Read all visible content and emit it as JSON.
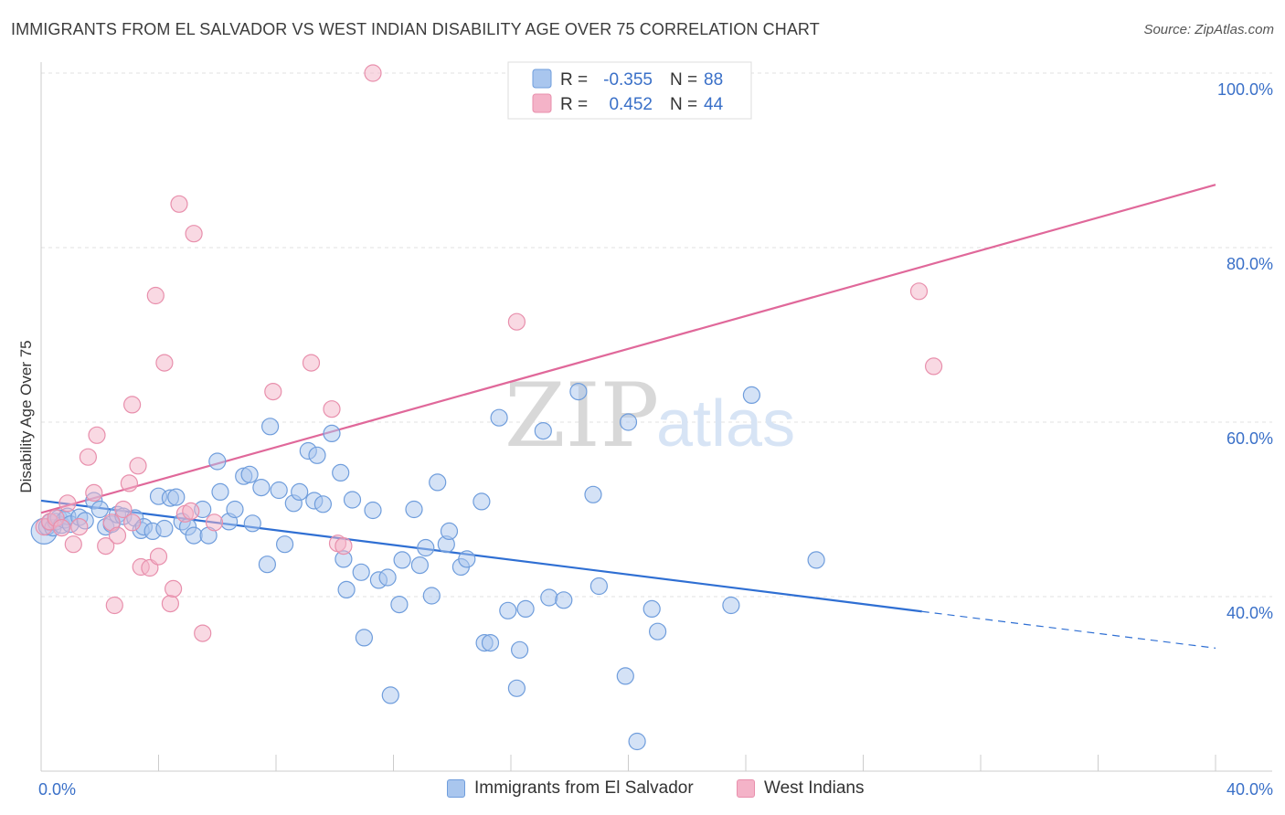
{
  "header": {
    "title": "IMMIGRANTS FROM EL SALVADOR VS WEST INDIAN DISABILITY AGE OVER 75 CORRELATION CHART",
    "source": "Source: ZipAtlas.com"
  },
  "watermark": {
    "part1": "ZIP",
    "part2": "atlas"
  },
  "stats_legend": {
    "rows": [
      {
        "r_label": "R =",
        "r_value": "-0.355",
        "n_label": "N =",
        "n_value": "88",
        "color": "#a9c6ee"
      },
      {
        "r_label": "R =",
        "r_value": "0.452",
        "n_label": "N =",
        "n_value": "44",
        "color": "#f4b3c8"
      }
    ]
  },
  "chart_data": {
    "type": "scatter",
    "xlabel": "",
    "ylabel": "Disability Age Over 75",
    "xlim": [
      0,
      40
    ],
    "ylim": [
      22,
      102
    ],
    "x_tick_labels": [
      {
        "value": 0,
        "label": "0.0%"
      },
      {
        "value": 40,
        "label": "40.0%"
      }
    ],
    "y_tick_labels": [
      {
        "value": 40,
        "label": "40.0%"
      },
      {
        "value": 60,
        "label": "60.0%"
      },
      {
        "value": 80,
        "label": "80.0%"
      },
      {
        "value": 100,
        "label": "100.0%"
      }
    ],
    "grid": true,
    "legend_position": "bottom",
    "series": [
      {
        "name": "Immigrants from El Salvador",
        "color": "#a9c6ee",
        "stroke": "#6f9ddc",
        "trend": {
          "x0": 0,
          "y0": 51.0,
          "x1": 30.0,
          "y1": 38.3,
          "dash_to_x": 40,
          "dash_to_y": 34.1,
          "color": "#2f6fd3"
        },
        "points": [
          [
            0.1,
            47.5
          ],
          [
            0.2,
            48.0
          ],
          [
            0.3,
            48.5
          ],
          [
            0.4,
            47.9
          ],
          [
            0.5,
            48.6
          ],
          [
            0.6,
            49.0
          ],
          [
            0.7,
            48.2
          ],
          [
            0.8,
            48.8
          ],
          [
            0.9,
            49.2
          ],
          [
            1.0,
            48.3
          ],
          [
            1.3,
            49.1
          ],
          [
            1.5,
            48.7
          ],
          [
            1.8,
            51.0
          ],
          [
            2.0,
            50.0
          ],
          [
            2.2,
            48.0
          ],
          [
            2.4,
            48.3
          ],
          [
            2.6,
            49.4
          ],
          [
            2.8,
            49.2
          ],
          [
            3.2,
            49.0
          ],
          [
            3.4,
            47.6
          ],
          [
            3.5,
            48.0
          ],
          [
            3.8,
            47.5
          ],
          [
            4.0,
            51.5
          ],
          [
            4.2,
            47.8
          ],
          [
            4.4,
            51.3
          ],
          [
            4.6,
            51.4
          ],
          [
            4.8,
            48.6
          ],
          [
            5.0,
            48.0
          ],
          [
            5.2,
            47.0
          ],
          [
            5.5,
            50.0
          ],
          [
            5.7,
            47.0
          ],
          [
            6.0,
            55.5
          ],
          [
            6.1,
            52.0
          ],
          [
            6.4,
            48.6
          ],
          [
            6.6,
            50.0
          ],
          [
            6.9,
            53.8
          ],
          [
            7.1,
            54.0
          ],
          [
            7.2,
            48.4
          ],
          [
            7.5,
            52.5
          ],
          [
            7.7,
            43.7
          ],
          [
            7.8,
            59.5
          ],
          [
            8.1,
            52.2
          ],
          [
            8.3,
            46.0
          ],
          [
            8.6,
            50.7
          ],
          [
            8.8,
            52.0
          ],
          [
            9.1,
            56.7
          ],
          [
            9.3,
            51.0
          ],
          [
            9.4,
            56.2
          ],
          [
            9.6,
            50.6
          ],
          [
            9.9,
            58.7
          ],
          [
            10.2,
            54.2
          ],
          [
            10.3,
            44.3
          ],
          [
            10.4,
            40.8
          ],
          [
            10.6,
            51.1
          ],
          [
            10.9,
            42.8
          ],
          [
            11.0,
            35.3
          ],
          [
            11.3,
            49.9
          ],
          [
            11.5,
            41.9
          ],
          [
            11.8,
            42.2
          ],
          [
            11.9,
            28.7
          ],
          [
            12.2,
            39.1
          ],
          [
            12.3,
            44.2
          ],
          [
            12.7,
            50.0
          ],
          [
            12.9,
            43.6
          ],
          [
            13.1,
            45.6
          ],
          [
            13.3,
            40.1
          ],
          [
            13.5,
            53.1
          ],
          [
            13.8,
            46.0
          ],
          [
            13.9,
            47.5
          ],
          [
            14.3,
            43.4
          ],
          [
            14.5,
            44.3
          ],
          [
            15.0,
            50.9
          ],
          [
            15.1,
            34.7
          ],
          [
            15.3,
            34.7
          ],
          [
            15.6,
            60.5
          ],
          [
            15.9,
            38.4
          ],
          [
            16.2,
            29.5
          ],
          [
            16.3,
            33.9
          ],
          [
            16.5,
            38.6
          ],
          [
            17.1,
            59.0
          ],
          [
            17.3,
            39.9
          ],
          [
            17.8,
            39.6
          ],
          [
            18.3,
            63.5
          ],
          [
            18.8,
            51.7
          ],
          [
            19.0,
            41.2
          ],
          [
            19.9,
            30.9
          ],
          [
            20.3,
            23.4
          ],
          [
            20.8,
            38.6
          ],
          [
            21.0,
            36.0
          ],
          [
            23.5,
            39.0
          ],
          [
            24.2,
            63.1
          ],
          [
            26.4,
            44.2
          ],
          [
            20.0,
            60.0
          ]
        ]
      },
      {
        "name": "West Indians",
        "color": "#f4b3c8",
        "stroke": "#e88fac",
        "trend": {
          "x0": 0,
          "y0": 49.6,
          "x1": 40,
          "y1": 87.2,
          "color": "#e0689a"
        },
        "points": [
          [
            0.1,
            48.0
          ],
          [
            0.3,
            48.6
          ],
          [
            0.5,
            49.0
          ],
          [
            0.7,
            47.9
          ],
          [
            0.9,
            50.7
          ],
          [
            1.1,
            46.0
          ],
          [
            1.3,
            48.0
          ],
          [
            1.6,
            56.0
          ],
          [
            1.8,
            51.9
          ],
          [
            1.9,
            58.5
          ],
          [
            2.2,
            45.8
          ],
          [
            2.4,
            48.5
          ],
          [
            2.5,
            39.0
          ],
          [
            2.6,
            47.0
          ],
          [
            2.8,
            50.0
          ],
          [
            3.0,
            53.0
          ],
          [
            3.1,
            48.5
          ],
          [
            3.1,
            62.0
          ],
          [
            3.3,
            55.0
          ],
          [
            3.4,
            43.4
          ],
          [
            3.7,
            43.3
          ],
          [
            3.9,
            74.5
          ],
          [
            4.0,
            44.6
          ],
          [
            4.2,
            66.8
          ],
          [
            4.4,
            39.2
          ],
          [
            4.5,
            40.9
          ],
          [
            4.7,
            85.0
          ],
          [
            4.9,
            49.5
          ],
          [
            5.1,
            49.8
          ],
          [
            5.2,
            81.6
          ],
          [
            5.5,
            35.8
          ],
          [
            5.9,
            48.5
          ],
          [
            7.9,
            63.5
          ],
          [
            9.2,
            66.8
          ],
          [
            9.9,
            61.5
          ],
          [
            10.1,
            46.1
          ],
          [
            10.3,
            45.8
          ],
          [
            11.3,
            100.0
          ],
          [
            16.2,
            71.5
          ],
          [
            29.9,
            75.0
          ],
          [
            30.4,
            66.4
          ]
        ]
      }
    ]
  }
}
